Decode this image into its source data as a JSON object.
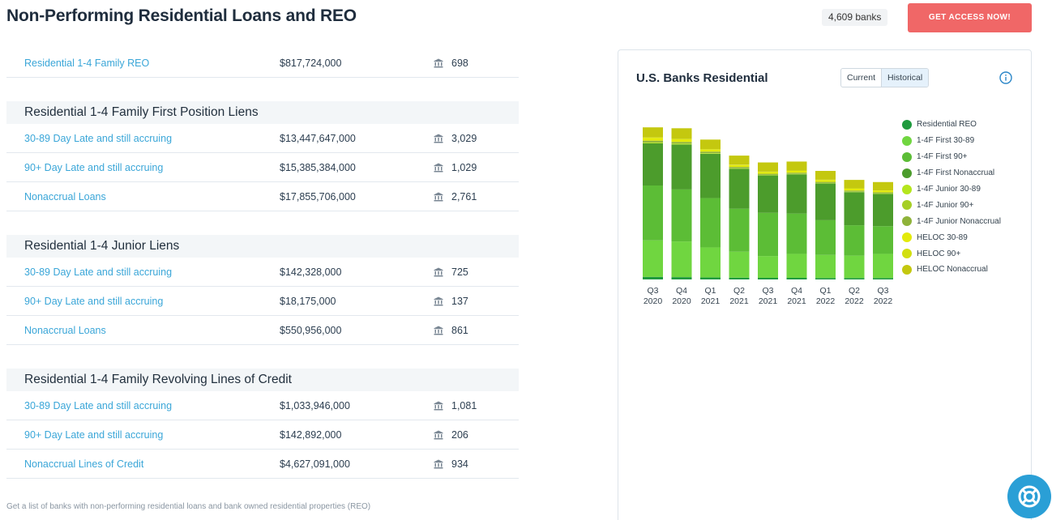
{
  "header": {
    "title": "Non-Performing Residential Loans and REO",
    "bank_count": "4,609 banks",
    "cta_label": "GET ACCESS NOW!"
  },
  "reo": {
    "label": "Residential 1-4 Family REO",
    "amount": "$817,724,000",
    "banks": "698"
  },
  "sections": [
    {
      "title": "Residential 1-4 Family First Position Liens",
      "rows": [
        {
          "label": "30-89 Day Late and still accruing",
          "amount": "$13,447,647,000",
          "banks": "3,029"
        },
        {
          "label": "90+ Day Late and still accruing",
          "amount": "$15,385,384,000",
          "banks": "1,029"
        },
        {
          "label": "Nonaccrual Loans",
          "amount": "$17,855,706,000",
          "banks": "2,761"
        }
      ]
    },
    {
      "title": "Residential 1-4 Junior Liens",
      "rows": [
        {
          "label": "30-89 Day Late and still accruing",
          "amount": "$142,328,000",
          "banks": "725"
        },
        {
          "label": "90+ Day Late and still accruing",
          "amount": "$18,175,000",
          "banks": "137"
        },
        {
          "label": "Nonaccrual Loans",
          "amount": "$550,956,000",
          "banks": "861"
        }
      ]
    },
    {
      "title": "Residential 1-4 Family Revolving Lines of Credit",
      "rows": [
        {
          "label": "30-89 Day Late and still accruing",
          "amount": "$1,033,946,000",
          "banks": "1,081"
        },
        {
          "label": "90+ Day Late and still accruing",
          "amount": "$142,892,000",
          "banks": "206"
        },
        {
          "label": "Nonaccrual Lines of Credit",
          "amount": "$4,627,091,000",
          "banks": "934"
        }
      ]
    }
  ],
  "footnote": "Get a list of banks with non-performing residential loans and bank owned residential properties (REO)",
  "chart_panel": {
    "title": "U.S. Banks Residential",
    "toggle": {
      "current": "Current",
      "historical": "Historical",
      "selected": "historical"
    }
  },
  "icons": {
    "bank": "bank-icon",
    "info": "info-icon",
    "help": "lifebuoy-icon"
  },
  "chart_data": {
    "type": "bar",
    "stacked": true,
    "unit": "billion USD (estimated)",
    "categories": [
      [
        "Q3",
        "2020"
      ],
      [
        "Q4",
        "2020"
      ],
      [
        "Q1",
        "2021"
      ],
      [
        "Q2",
        "2021"
      ],
      [
        "Q3",
        "2021"
      ],
      [
        "Q4",
        "2021"
      ],
      [
        "Q1",
        "2022"
      ],
      [
        "Q2",
        "2022"
      ],
      [
        "Q3",
        "2022"
      ]
    ],
    "series": [
      {
        "name": "Residential REO",
        "color": "#1f9a3e",
        "values": [
          1.4,
          1.3,
          1.1,
          1.0,
          0.9,
          0.9,
          0.8,
          0.8,
          0.8
        ]
      },
      {
        "name": "1-4F First 30-89",
        "color": "#70d640",
        "values": [
          20.3,
          19.8,
          16.7,
          14.4,
          12.1,
          13.3,
          12.8,
          12.4,
          13.4
        ]
      },
      {
        "name": "1-4F First 90+",
        "color": "#5cbd36",
        "values": [
          30.5,
          28.9,
          27.4,
          23.9,
          24.0,
          22.4,
          19.3,
          16.9,
          15.4
        ]
      },
      {
        "name": "1-4F First Nonaccrual",
        "color": "#4c9c2c",
        "values": [
          23.4,
          25.0,
          24.6,
          22.2,
          20.8,
          21.8,
          20.4,
          18.4,
          17.9
        ]
      },
      {
        "name": "1-4F Junior 30-89",
        "color": "#b5e61d",
        "values": [
          0.4,
          0.4,
          0.3,
          0.2,
          0.2,
          0.2,
          0.2,
          0.2,
          0.2
        ]
      },
      {
        "name": "1-4F Junior 90+",
        "color": "#a6cf26",
        "values": [
          0.1,
          0.1,
          0.1,
          0.1,
          0.1,
          0.1,
          0.1,
          0.1,
          0.1
        ]
      },
      {
        "name": "1-4F Junior Nonaccrual",
        "color": "#8fb33a",
        "values": [
          1.0,
          0.9,
          0.8,
          0.7,
          0.6,
          0.6,
          0.6,
          0.6,
          0.6
        ]
      },
      {
        "name": "HELOC 30-89",
        "color": "#e3ea0a",
        "values": [
          1.6,
          1.5,
          1.2,
          1.1,
          1.0,
          1.0,
          1.0,
          1.0,
          1.0
        ]
      },
      {
        "name": "HELOC 90+",
        "color": "#d2df10",
        "values": [
          0.2,
          0.2,
          0.2,
          0.2,
          0.2,
          0.2,
          0.2,
          0.2,
          0.1
        ]
      },
      {
        "name": "HELOC Nonaccrual",
        "color": "#c4c80f",
        "values": [
          5.6,
          5.9,
          5.3,
          5.0,
          5.1,
          5.0,
          4.9,
          4.7,
          4.6
        ]
      }
    ],
    "ylim": [
      0,
      90
    ],
    "grid": false,
    "legend_position": "right"
  }
}
